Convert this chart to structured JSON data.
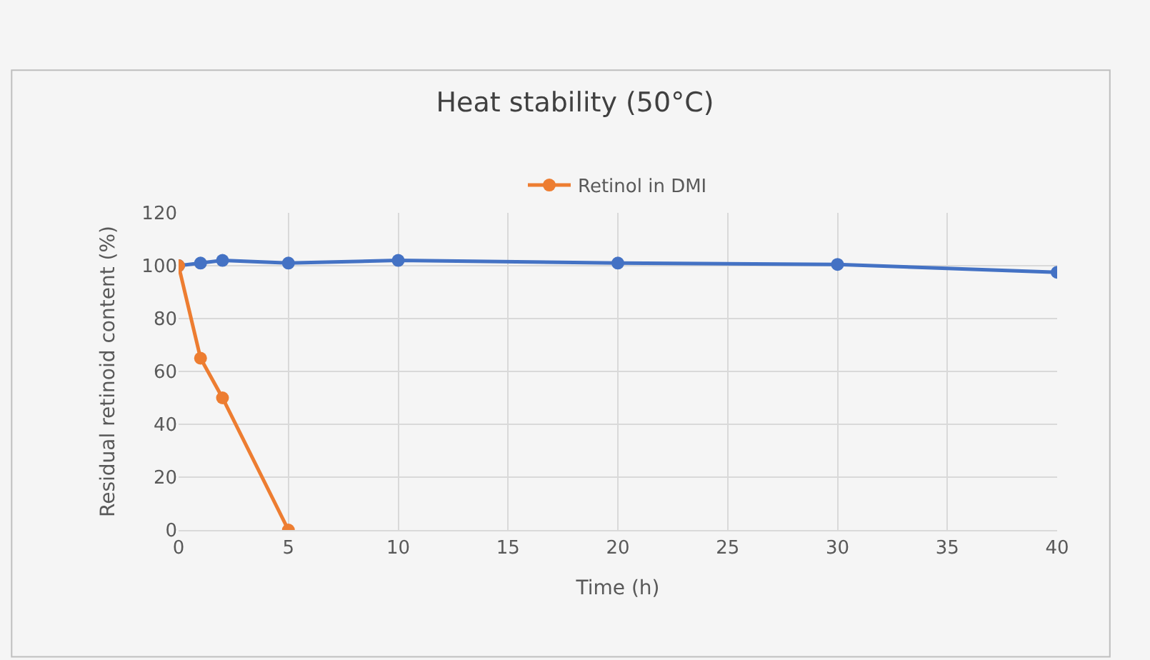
{
  "chart_data": {
    "type": "line",
    "title": "Heat stability (50°C)",
    "xlabel": "Time (h)",
    "ylabel": "Residual retinoid content (%)",
    "series": [
      {
        "color": "#4472c4",
        "x": [
          0,
          1,
          2,
          5,
          10,
          20,
          30,
          40
        ],
        "values": [
          100,
          101,
          102,
          101,
          102,
          101,
          100.5,
          97.5
        ]
      },
      {
        "name": "Retinol in DMI",
        "color": "#ed7d31",
        "x": [
          0,
          1,
          2,
          5
        ],
        "values": [
          100,
          65,
          50,
          0
        ]
      }
    ],
    "xlim": [
      0,
      40
    ],
    "xticks": [
      0,
      5,
      10,
      15,
      20,
      25,
      30,
      35,
      40
    ],
    "ylim": [
      0,
      120
    ],
    "yticks": [
      0,
      20,
      40,
      60,
      80,
      100,
      120
    ],
    "grid": true,
    "legend": "top",
    "marker": "circle",
    "line_style": "solid"
  }
}
